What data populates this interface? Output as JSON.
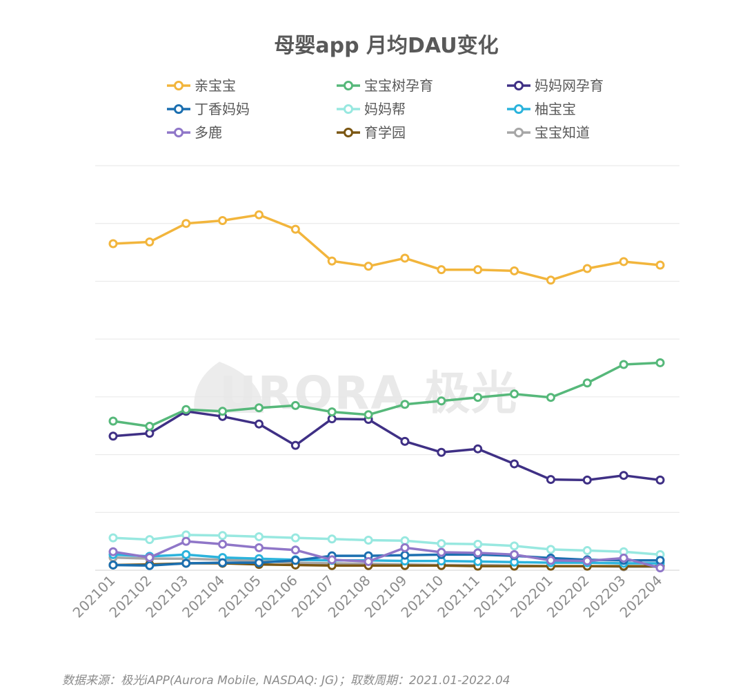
{
  "chart_data": {
    "type": "line",
    "title": "母婴app 月均DAU变化",
    "xlabel": "",
    "ylabel": "",
    "ylim": [
      0,
      7
    ],
    "grid": true,
    "legend_position": "top",
    "categories": [
      "202101",
      "202102",
      "202103",
      "202104",
      "202105",
      "202106",
      "202107",
      "202108",
      "202109",
      "202110",
      "202111",
      "202112",
      "202201",
      "202202",
      "202203",
      "202204"
    ],
    "series": [
      {
        "name": "亲宝宝",
        "color": "#f2b53c",
        "values": [
          5.65,
          5.68,
          6.0,
          6.05,
          6.15,
          5.9,
          5.35,
          5.26,
          5.4,
          5.2,
          5.2,
          5.18,
          5.02,
          5.22,
          5.34,
          5.28
        ]
      },
      {
        "name": "宝宝树孕育",
        "color": "#56b87a",
        "values": [
          2.58,
          2.49,
          2.78,
          2.75,
          2.81,
          2.85,
          2.74,
          2.69,
          2.87,
          2.93,
          2.99,
          3.05,
          2.99,
          3.24,
          3.56,
          3.59
        ]
      },
      {
        "name": "妈妈网孕育",
        "color": "#3f3085",
        "values": [
          2.32,
          2.37,
          2.75,
          2.66,
          2.53,
          2.16,
          2.62,
          2.61,
          2.23,
          2.04,
          2.1,
          1.84,
          1.57,
          1.56,
          1.64,
          1.56
        ]
      },
      {
        "name": "丁香妈妈",
        "color": "#1b6fb0",
        "values": [
          0.09,
          0.08,
          0.12,
          0.13,
          0.13,
          0.17,
          0.25,
          0.25,
          0.26,
          0.27,
          0.27,
          0.25,
          0.21,
          0.18,
          0.17,
          0.17
        ]
      },
      {
        "name": "妈妈帮",
        "color": "#98e8e0",
        "values": [
          0.56,
          0.53,
          0.61,
          0.6,
          0.58,
          0.56,
          0.54,
          0.52,
          0.51,
          0.46,
          0.45,
          0.42,
          0.36,
          0.34,
          0.32,
          0.27
        ]
      },
      {
        "name": "柚宝宝",
        "color": "#2bb3dc",
        "values": [
          0.27,
          0.24,
          0.27,
          0.22,
          0.2,
          0.18,
          0.17,
          0.17,
          0.16,
          0.16,
          0.15,
          0.14,
          0.13,
          0.13,
          0.12,
          0.12
        ]
      },
      {
        "name": "多鹿",
        "color": "#8f76c8",
        "values": [
          0.32,
          0.22,
          0.5,
          0.45,
          0.39,
          0.35,
          0.18,
          0.15,
          0.39,
          0.31,
          0.3,
          0.27,
          0.17,
          0.16,
          0.21,
          0.04
        ]
      },
      {
        "name": "育学园",
        "color": "#7a5612",
        "values": [
          0.09,
          0.1,
          0.12,
          0.12,
          0.1,
          0.09,
          0.08,
          0.08,
          0.08,
          0.08,
          0.07,
          0.07,
          0.07,
          0.07,
          0.07,
          0.07
        ]
      },
      {
        "name": "宝宝知道",
        "color": "#a6a6a6",
        "values": [
          0.22,
          0.2,
          0.2,
          0.18,
          0.16,
          0.13,
          0.12,
          0.11,
          0.1,
          0.09,
          0.09,
          0.08,
          0.07,
          0.07,
          0.06,
          0.06
        ]
      }
    ],
    "watermark": "URORA 极光",
    "source": "数据来源：极光iAPP(Aurora Mobile, NASDAQ: JG)；取数周期：2021.01-2022.04"
  }
}
